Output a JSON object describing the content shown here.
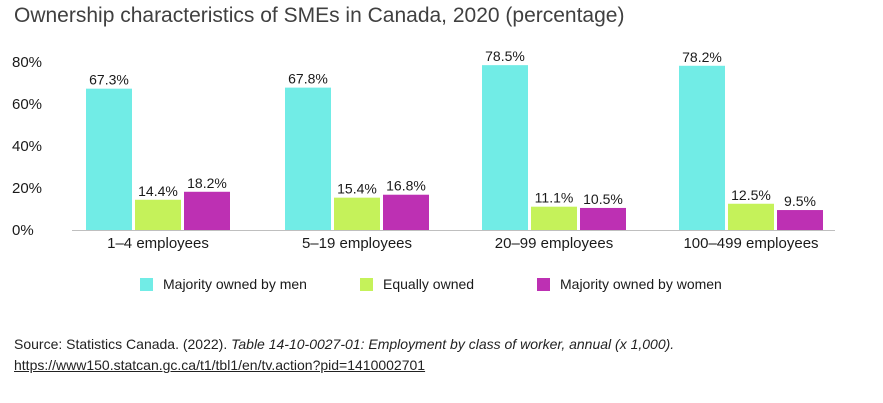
{
  "title": "Ownership characteristics of SMEs in Canada, 2020 (percentage)",
  "colors": {
    "men": "#71ece6",
    "equal": "#c5f25a",
    "women": "#bd30b3",
    "axis": "#bfbfbf"
  },
  "chart_data": {
    "type": "bar",
    "title": "Ownership characteristics of SMEs in Canada, 2020 (percentage)",
    "xlabel": "",
    "ylabel": "",
    "ylim": [
      0,
      80
    ],
    "yticks": [
      "0%",
      "20%",
      "40%",
      "60%",
      "80%"
    ],
    "categories": [
      "1–4 employees",
      "5–19 employees",
      "20–99 employees",
      "100–499 employees"
    ],
    "series": [
      {
        "name": "Majority owned by men",
        "values": [
          67.3,
          67.8,
          78.5,
          78.2
        ],
        "labels": [
          "67.3%",
          "67.8%",
          "78.5%",
          "78.2%"
        ]
      },
      {
        "name": "Equally owned",
        "values": [
          14.4,
          15.4,
          11.1,
          12.5
        ],
        "labels": [
          "14.4%",
          "15.4%",
          "11.1%",
          "12.5%"
        ]
      },
      {
        "name": "Majority owned by women",
        "values": [
          18.2,
          16.8,
          10.5,
          9.5
        ],
        "labels": [
          "18.2%",
          "16.8%",
          "10.5%",
          "9.5%"
        ]
      }
    ],
    "legend_position": "bottom",
    "grid": false
  },
  "legend": [
    {
      "label": "Majority owned by men",
      "color": "#71ece6"
    },
    {
      "label": "Equally owned",
      "color": "#c5f25a"
    },
    {
      "label": "Majority owned by women",
      "color": "#bd30b3"
    }
  ],
  "source": {
    "prefix": "Source: Statistics Canada. (2022). ",
    "title": "Table 14-10-0027-01: Employment by class of worker, annual (x 1,000).",
    "url": "https://www150.statcan.gc.ca/t1/tbl1/en/tv.action?pid=1410002701"
  }
}
